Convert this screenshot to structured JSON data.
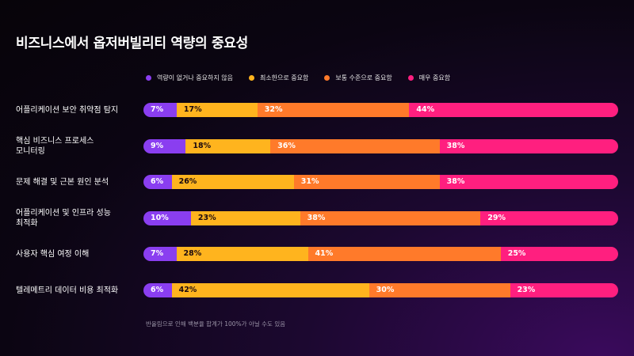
{
  "title": "비즈니스에서 옵저버빌리티 역량의 중요성",
  "legend": [
    {
      "label": "역량이 없거나 중요하지 않음",
      "color": "#8a3ef0"
    },
    {
      "label": "최소한으로 중요함",
      "color": "#ffb41e"
    },
    {
      "label": "보통 수준으로 중요함",
      "color": "#ff7a2a"
    },
    {
      "label": "매우 중요함",
      "color": "#ff1f7f"
    }
  ],
  "footnote": "반올림으로 인해 백분율 합계가 100%가 아닐 수도 있음",
  "chart_data": {
    "type": "bar",
    "stacked": true,
    "orientation": "horizontal",
    "title": "비즈니스에서 옵저버빌리티 역량의 중요성",
    "categories": [
      "어플리케이션 보안 취약점 탐지",
      "핵심 비즈니스 프로세스 모니터링",
      "문제 해결 및 근본 원인 분석",
      "어플리케이션 및 인프라 성능 최적화",
      "사용자 핵심 여정 이해",
      "텔레메트리 데이터 비용 최적화"
    ],
    "category_lines": [
      [
        "어플리케이션 보안 취약점 탐지"
      ],
      [
        "핵심 비즈니스 프로세스",
        "모니터링"
      ],
      [
        "문제 해결 및 근본 원인 분석"
      ],
      [
        "어플리케이션 및 인프라 성능",
        "최적화"
      ],
      [
        "사용자 핵심 여정 이해"
      ],
      [
        "텔레메트리 데이터 비용 최적화"
      ]
    ],
    "series": [
      {
        "name": "역량이 없거나 중요하지 않음",
        "color": "#8a3ef0",
        "values": [
          7,
          9,
          6,
          10,
          7,
          6
        ]
      },
      {
        "name": "최소한으로 중요함",
        "color": "#ffb41e",
        "values": [
          17,
          18,
          26,
          23,
          28,
          42
        ]
      },
      {
        "name": "보통 수준으로 중요함",
        "color": "#ff7a2a",
        "values": [
          32,
          36,
          31,
          38,
          41,
          30
        ]
      },
      {
        "name": "매우 중요함",
        "color": "#ff1f7f",
        "values": [
          44,
          38,
          38,
          29,
          25,
          23
        ]
      }
    ],
    "value_suffix": "%",
    "legend_position": "top",
    "grid": false
  }
}
